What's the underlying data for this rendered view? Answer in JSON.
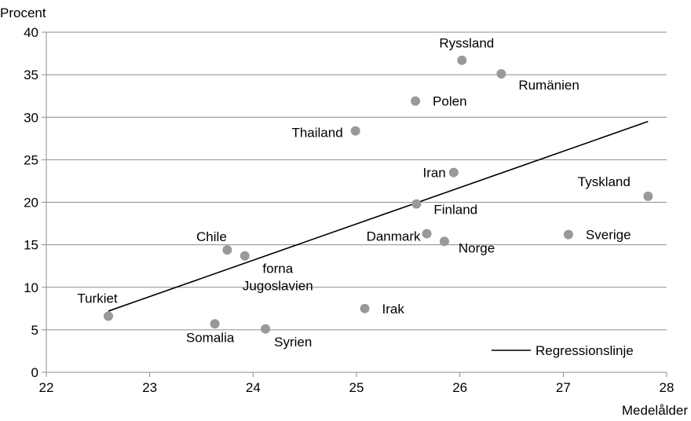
{
  "chart_data": {
    "type": "scatter",
    "title": "",
    "ylabel": "Procent",
    "xlabel": "Medelålder",
    "xlim": [
      22,
      28
    ],
    "ylim": [
      0,
      40
    ],
    "x_ticks": [
      22,
      23,
      24,
      25,
      26,
      27,
      28
    ],
    "y_ticks": [
      0,
      5,
      10,
      15,
      20,
      25,
      30,
      35,
      40
    ],
    "grid": "horizontal",
    "point_color": "#999999",
    "points": [
      {
        "label": "Ryssland",
        "x": 26.02,
        "y": 36.7
      },
      {
        "label": "Rumänien",
        "x": 26.4,
        "y": 35.1
      },
      {
        "label": "Polen",
        "x": 25.57,
        "y": 31.9
      },
      {
        "label": "Thailand",
        "x": 24.99,
        "y": 28.4
      },
      {
        "label": "Iran",
        "x": 25.94,
        "y": 23.5
      },
      {
        "label": "Tyskland",
        "x": 27.82,
        "y": 20.7
      },
      {
        "label": "Finland",
        "x": 25.58,
        "y": 19.8
      },
      {
        "label": "Danmark",
        "x": 25.68,
        "y": 16.3
      },
      {
        "label": "Sverige",
        "x": 27.05,
        "y": 16.2
      },
      {
        "label": "Norge",
        "x": 25.85,
        "y": 15.4
      },
      {
        "label": "Chile",
        "x": 23.75,
        "y": 14.4
      },
      {
        "label": "forna Jugoslavien",
        "x": 23.92,
        "y": 13.7
      },
      {
        "label": "Turkiet",
        "x": 22.6,
        "y": 6.6
      },
      {
        "label": "Irak",
        "x": 25.08,
        "y": 7.5
      },
      {
        "label": "Somalia",
        "x": 23.63,
        "y": 5.7
      },
      {
        "label": "Syrien",
        "x": 24.12,
        "y": 5.1
      }
    ],
    "regression": {
      "name": "Regressionslinje",
      "color": "#000000",
      "start": {
        "x": 22.6,
        "y": 7.2
      },
      "end": {
        "x": 27.82,
        "y": 29.5
      }
    },
    "legend": {
      "position": "bottom-right",
      "entries": [
        "Regressionslinje"
      ]
    }
  }
}
